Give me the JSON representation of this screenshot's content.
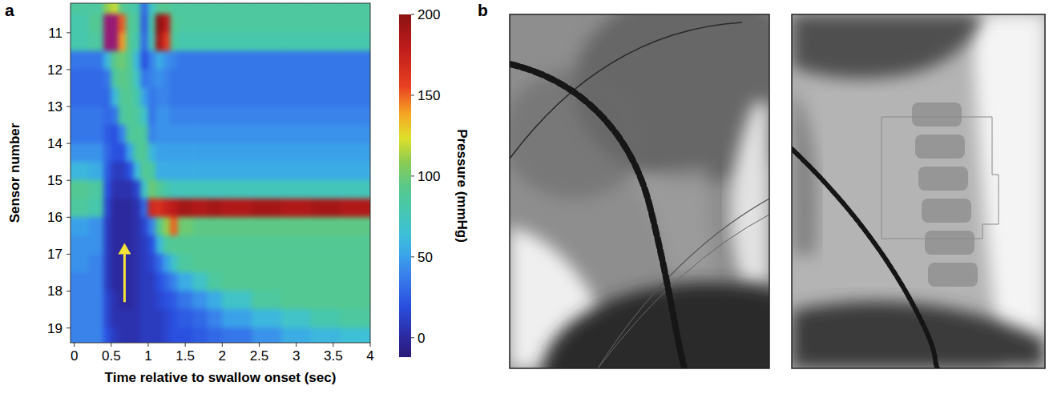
{
  "panels": [
    "a",
    "b"
  ],
  "chart_data": {
    "type": "heatmap",
    "x_label": "Time relative to swallow onset (sec)",
    "y_label": "Sensor number",
    "xlim": [
      -0.05,
      4
    ],
    "xticks": [
      0,
      0.5,
      1,
      1.5,
      2,
      2.5,
      3,
      3.5,
      4
    ],
    "ylim": [
      19.4,
      10.2
    ],
    "yticks": [
      11,
      12,
      13,
      14,
      15,
      16,
      17,
      18,
      19
    ],
    "x_bins": [
      -0.05,
      0.2,
      0.4,
      0.5,
      0.6,
      0.7,
      0.8,
      0.9,
      1.0,
      1.1,
      1.2,
      1.3,
      1.4,
      1.6,
      1.8,
      2.0,
      2.4,
      2.8,
      3.2,
      3.6,
      4.0
    ],
    "y_bins": [
      10.2,
      10.5,
      11,
      11.5,
      12,
      12.5,
      13,
      13.5,
      14,
      14.5,
      15,
      15.5,
      16,
      16.5,
      17,
      17.5,
      18,
      18.5,
      19,
      19.4
    ],
    "cells": [
      [
        85,
        85,
        110,
        120,
        90,
        85,
        80,
        30,
        70,
        90,
        90,
        85,
        85,
        85,
        85,
        85,
        85,
        85,
        85,
        85
      ],
      [
        80,
        90,
        240,
        240,
        150,
        90,
        85,
        25,
        80,
        200,
        180,
        90,
        85,
        85,
        85,
        85,
        85,
        85,
        85,
        85
      ],
      [
        80,
        85,
        230,
        220,
        140,
        90,
        80,
        30,
        75,
        190,
        160,
        85,
        80,
        80,
        80,
        80,
        80,
        80,
        80,
        80
      ],
      [
        35,
        35,
        60,
        95,
        100,
        90,
        60,
        20,
        40,
        55,
        45,
        40,
        35,
        35,
        35,
        35,
        35,
        35,
        35,
        35
      ],
      [
        30,
        30,
        35,
        85,
        95,
        90,
        70,
        35,
        40,
        45,
        40,
        35,
        35,
        35,
        35,
        35,
        35,
        35,
        35,
        35
      ],
      [
        30,
        30,
        30,
        60,
        90,
        90,
        80,
        50,
        35,
        40,
        40,
        35,
        35,
        35,
        35,
        35,
        35,
        35,
        35,
        35
      ],
      [
        35,
        35,
        30,
        35,
        85,
        90,
        85,
        70,
        35,
        45,
        45,
        40,
        40,
        40,
        40,
        40,
        40,
        40,
        40,
        40
      ],
      [
        35,
        35,
        25,
        20,
        40,
        85,
        90,
        85,
        40,
        45,
        45,
        45,
        45,
        45,
        45,
        45,
        45,
        45,
        45,
        45
      ],
      [
        45,
        45,
        30,
        20,
        20,
        50,
        85,
        90,
        60,
        50,
        50,
        50,
        50,
        50,
        50,
        50,
        50,
        50,
        50,
        50
      ],
      [
        60,
        55,
        25,
        10,
        10,
        20,
        60,
        90,
        85,
        55,
        55,
        55,
        55,
        55,
        55,
        55,
        55,
        55,
        55,
        55
      ],
      [
        90,
        85,
        20,
        5,
        5,
        5,
        15,
        70,
        100,
        90,
        80,
        75,
        75,
        75,
        75,
        75,
        75,
        75,
        75,
        75
      ],
      [
        85,
        80,
        15,
        0,
        0,
        0,
        5,
        30,
        170,
        165,
        175,
        180,
        190,
        185,
        190,
        185,
        190,
        185,
        190,
        185
      ],
      [
        50,
        45,
        10,
        0,
        0,
        0,
        5,
        15,
        40,
        90,
        110,
        150,
        100,
        95,
        95,
        95,
        95,
        95,
        95,
        95
      ],
      [
        45,
        45,
        10,
        0,
        0,
        0,
        5,
        10,
        20,
        60,
        85,
        90,
        90,
        90,
        90,
        90,
        90,
        90,
        90,
        90
      ],
      [
        45,
        40,
        10,
        0,
        0,
        0,
        5,
        10,
        15,
        30,
        50,
        70,
        85,
        90,
        90,
        90,
        90,
        90,
        90,
        90
      ],
      [
        40,
        40,
        10,
        0,
        0,
        0,
        5,
        10,
        10,
        20,
        30,
        40,
        55,
        70,
        85,
        90,
        90,
        90,
        90,
        90
      ],
      [
        40,
        40,
        15,
        5,
        0,
        0,
        5,
        10,
        10,
        15,
        20,
        25,
        35,
        45,
        55,
        70,
        85,
        90,
        90,
        90
      ],
      [
        40,
        40,
        15,
        5,
        5,
        5,
        5,
        10,
        10,
        10,
        15,
        20,
        25,
        30,
        40,
        50,
        60,
        70,
        80,
        85
      ],
      [
        40,
        40,
        20,
        10,
        5,
        5,
        5,
        10,
        10,
        10,
        15,
        20,
        20,
        25,
        30,
        35,
        45,
        55,
        60,
        65
      ]
    ],
    "colorbar": {
      "label": "Pressure (mmHg)",
      "range": [
        -12,
        200
      ],
      "ticks": [
        0,
        50,
        100,
        150,
        200
      ]
    },
    "arrow": {
      "x": 0.68,
      "y_start": 18.3,
      "y_end": 16.7
    }
  }
}
